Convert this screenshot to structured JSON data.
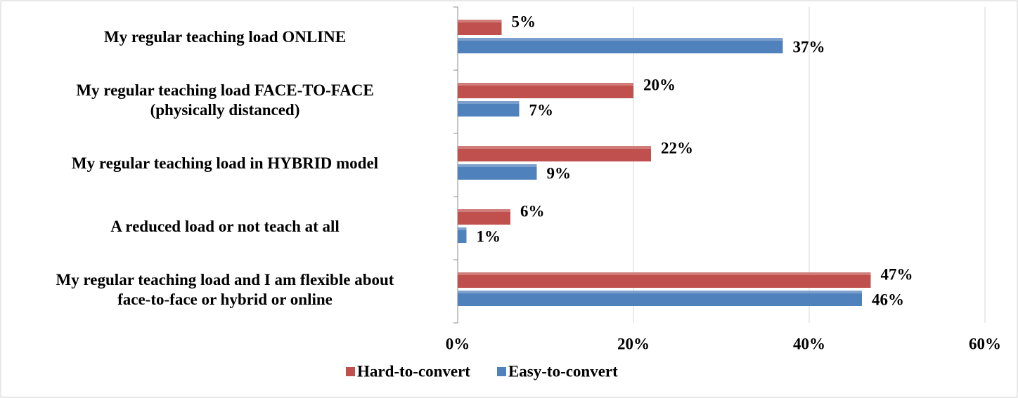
{
  "chart_data": {
    "type": "hbar",
    "categories": [
      "My regular teaching load ONLINE",
      "My regular teaching load FACE-TO-FACE\n(physically distanced)",
      "My regular teaching load in HYBRID model",
      "A reduced load or not teach at all",
      "My regular teaching load and I am flexible about\nface-to-face or hybrid or online"
    ],
    "series": [
      {
        "name": "Hard-to-convert",
        "color": "#c0504d",
        "values": [
          5,
          20,
          22,
          6,
          47
        ],
        "value_labels": [
          "5%",
          "20%",
          "22%",
          "6%",
          "47%"
        ]
      },
      {
        "name": "Easy-to-convert",
        "color": "#4f81bd",
        "values": [
          37,
          7,
          9,
          1,
          46
        ],
        "value_labels": [
          "37%",
          "7%",
          "9%",
          "1%",
          "46%"
        ]
      }
    ],
    "xlim": [
      0,
      60
    ],
    "xticks": [
      {
        "value": 0,
        "label": "0%"
      },
      {
        "value": 20,
        "label": "20%"
      },
      {
        "value": 40,
        "label": "40%"
      },
      {
        "value": 60,
        "label": "60%"
      }
    ],
    "grid": true,
    "legend": "bottom"
  }
}
